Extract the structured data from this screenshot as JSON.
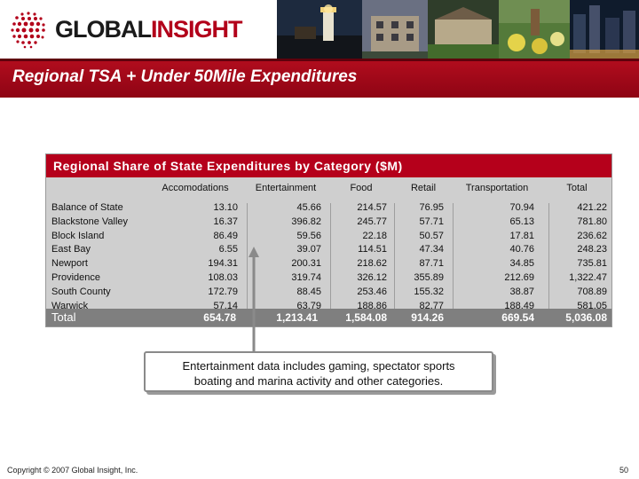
{
  "header": {
    "logo_part1": "GLOBAL",
    "logo_part2": "INSIGHT",
    "brand_color": "#b2001a"
  },
  "slide_title": "Regional TSA + Under 50Mile Expenditures",
  "table": {
    "title": "Regional Share of State Expenditures by Category ($M)",
    "columns": [
      "Accomodations",
      "Entertainment",
      "Food",
      "Retail",
      "Transportation",
      "Total"
    ],
    "rows": [
      {
        "label": "Balance of State",
        "values": [
          "13.10",
          "45.66",
          "214.57",
          "76.95",
          "70.94",
          "421.22"
        ]
      },
      {
        "label": "Blackstone Valley",
        "values": [
          "16.37",
          "396.82",
          "245.77",
          "57.71",
          "65.13",
          "781.80"
        ]
      },
      {
        "label": "Block Island",
        "values": [
          "86.49",
          "59.56",
          "22.18",
          "50.57",
          "17.81",
          "236.62"
        ]
      },
      {
        "label": "East Bay",
        "values": [
          "6.55",
          "39.07",
          "114.51",
          "47.34",
          "40.76",
          "248.23"
        ]
      },
      {
        "label": "Newport",
        "values": [
          "194.31",
          "200.31",
          "218.62",
          "87.71",
          "34.85",
          "735.81"
        ]
      },
      {
        "label": "Providence",
        "values": [
          "108.03",
          "319.74",
          "326.12",
          "355.89",
          "212.69",
          "1,322.47"
        ]
      },
      {
        "label": "South County",
        "values": [
          "172.79",
          "88.45",
          "253.46",
          "155.32",
          "38.87",
          "708.89"
        ]
      },
      {
        "label": "Warwick",
        "values": [
          "57.14",
          "63.79",
          "188.86",
          "82.77",
          "188.49",
          "581.05"
        ]
      }
    ],
    "total": {
      "label": "Total",
      "values": [
        "654.78",
        "1,213.41",
        "1,584.08",
        "914.26",
        "669.54",
        "5,036.08"
      ]
    }
  },
  "callout": {
    "line1": "Entertainment data includes gaming, spectator sports",
    "line2": "boating and marina activity and other categories."
  },
  "footer": {
    "copyright": "Copyright © 2007 Global Insight, Inc.",
    "page_number": "50"
  }
}
